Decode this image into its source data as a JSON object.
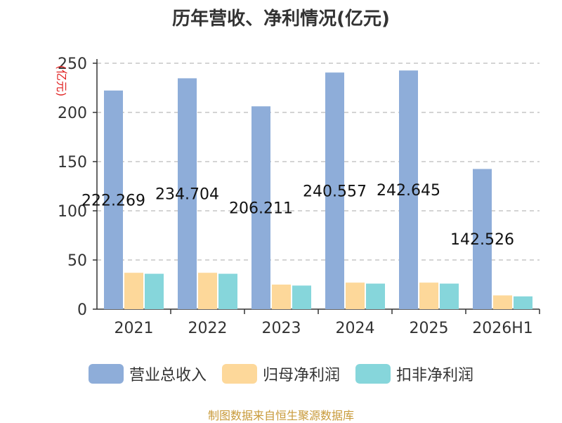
{
  "chart_data": {
    "type": "bar",
    "title": "历年营收、净利情况(亿元)",
    "ylabel": "(亿元)",
    "xlabel": "",
    "ylim": [
      0,
      250
    ],
    "yticks": [
      0,
      50,
      100,
      150,
      200,
      250
    ],
    "grid": true,
    "legend_position": "bottom",
    "categories": [
      "2021",
      "2022",
      "2023",
      "2024",
      "2025",
      "2026H1"
    ],
    "series": [
      {
        "name": "营业总收入",
        "color": "#8eadd9",
        "values": [
          222.269,
          234.704,
          206.211,
          240.557,
          242.645,
          142.526
        ]
      },
      {
        "name": "归母净利润",
        "color": "#fdd89a",
        "values": [
          37,
          37,
          25,
          27,
          27,
          14
        ]
      },
      {
        "name": "扣非净利润",
        "color": "#86d6db",
        "values": [
          36,
          36,
          24,
          26,
          26,
          13
        ]
      }
    ],
    "data_labels": [
      "222.269",
      "234.704",
      "206.211",
      "240.557",
      "242.645",
      "142.526"
    ]
  },
  "footer": {
    "source": "制图数据来自恒生聚源数据库"
  }
}
